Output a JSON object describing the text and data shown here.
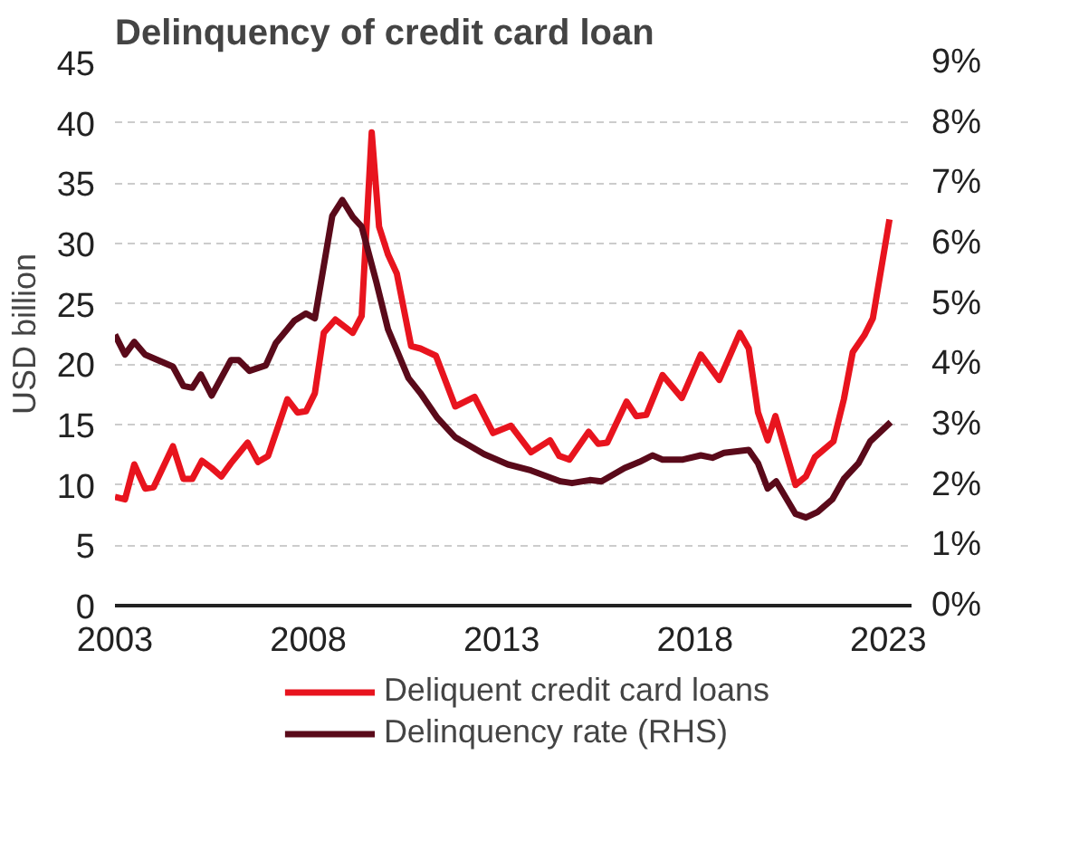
{
  "chart_data": {
    "type": "line",
    "title": "Delinquency of credit card loan",
    "ylabel": "USD billion",
    "xlim": [
      2003,
      2023.6
    ],
    "xticks": [
      2003,
      2008,
      2013,
      2018,
      2023
    ],
    "ylim": [
      0,
      45
    ],
    "yticks": [
      0,
      5,
      10,
      15,
      20,
      25,
      30,
      35,
      40,
      45
    ],
    "y2lim": [
      0,
      9
    ],
    "y2ticks": [
      {
        "value": 0,
        "label": "0%"
      },
      {
        "value": 1,
        "label": "1%"
      },
      {
        "value": 2,
        "label": "2%"
      },
      {
        "value": 3,
        "label": "3%"
      },
      {
        "value": 4,
        "label": "4%"
      },
      {
        "value": 5,
        "label": "5%"
      },
      {
        "value": 6,
        "label": "6%"
      },
      {
        "value": 7,
        "label": "7%"
      },
      {
        "value": 8,
        "label": "8%"
      },
      {
        "value": 9,
        "label": "9%"
      }
    ],
    "grid": "y",
    "legend": "bottom",
    "marker": "none",
    "line_style": "solid",
    "series": [
      {
        "name": "Deliquent credit card loans",
        "color": "#e8141e",
        "x": [
          2003.0,
          2003.26,
          2003.5,
          2003.78,
          2004.0,
          2004.5,
          2004.77,
          2005.0,
          2005.25,
          2005.5,
          2005.75,
          2006.0,
          2006.43,
          2006.7,
          2006.96,
          2007.46,
          2007.72,
          2007.94,
          2008.17,
          2008.4,
          2008.7,
          2009.15,
          2009.38,
          2009.64,
          2009.83,
          2010.06,
          2010.29,
          2010.66,
          2010.9,
          2011.3,
          2011.8,
          2012.3,
          2012.78,
          2013.24,
          2013.76,
          2014.25,
          2014.49,
          2014.75,
          2015.25,
          2015.5,
          2015.73,
          2016.23,
          2016.48,
          2016.74,
          2017.16,
          2017.66,
          2018.15,
          2018.63,
          2019.16,
          2019.39,
          2019.63,
          2019.88,
          2020.08,
          2020.6,
          2020.87,
          2021.1,
          2021.58,
          2021.85,
          2022.08,
          2022.38,
          2022.6,
          2023.03
        ],
        "values": [
          9.0,
          8.8,
          11.7,
          9.7,
          9.8,
          13.2,
          10.5,
          10.5,
          12.0,
          11.4,
          10.7,
          11.8,
          13.5,
          11.9,
          12.4,
          17.1,
          16.0,
          16.1,
          17.6,
          22.6,
          23.7,
          22.6,
          24.0,
          39.2,
          31.4,
          29.1,
          27.5,
          21.5,
          21.3,
          20.7,
          16.5,
          17.3,
          14.3,
          14.9,
          12.7,
          13.7,
          12.4,
          12.1,
          14.4,
          13.4,
          13.5,
          16.9,
          15.7,
          15.8,
          19.1,
          17.2,
          20.8,
          18.7,
          22.6,
          21.3,
          16.0,
          13.7,
          15.7,
          10.0,
          10.7,
          12.3,
          13.6,
          17.1,
          21.0,
          22.4,
          23.8,
          32.0
        ]
      },
      {
        "name": "Delinquency rate (RHS)",
        "color": "#5a0a1a",
        "axis": "y2",
        "x": [
          2003.0,
          2003.26,
          2003.5,
          2003.78,
          2004.5,
          2004.77,
          2005.0,
          2005.22,
          2005.5,
          2006.0,
          2006.2,
          2006.48,
          2006.9,
          2007.16,
          2007.64,
          2007.94,
          2008.17,
          2008.62,
          2008.88,
          2009.15,
          2009.38,
          2009.76,
          2010.06,
          2010.59,
          2010.9,
          2011.34,
          2011.8,
          2012.55,
          2013.16,
          2013.76,
          2014.52,
          2014.82,
          2015.28,
          2015.58,
          2016.18,
          2016.56,
          2016.9,
          2017.16,
          2017.69,
          2018.15,
          2018.45,
          2018.75,
          2019.39,
          2019.63,
          2019.88,
          2020.1,
          2020.6,
          2020.87,
          2021.17,
          2021.55,
          2021.85,
          2022.23,
          2022.53,
          2023.06
        ],
        "values": [
          4.49,
          4.16,
          4.37,
          4.16,
          3.96,
          3.64,
          3.61,
          3.83,
          3.48,
          4.07,
          4.07,
          3.89,
          3.98,
          4.35,
          4.72,
          4.84,
          4.76,
          6.46,
          6.72,
          6.44,
          6.28,
          5.36,
          4.58,
          3.77,
          3.52,
          3.11,
          2.79,
          2.51,
          2.34,
          2.24,
          2.06,
          2.03,
          2.08,
          2.06,
          2.28,
          2.38,
          2.49,
          2.42,
          2.42,
          2.49,
          2.45,
          2.53,
          2.58,
          2.36,
          1.94,
          2.06,
          1.52,
          1.46,
          1.55,
          1.76,
          2.1,
          2.36,
          2.72,
          3.04
        ]
      }
    ]
  }
}
